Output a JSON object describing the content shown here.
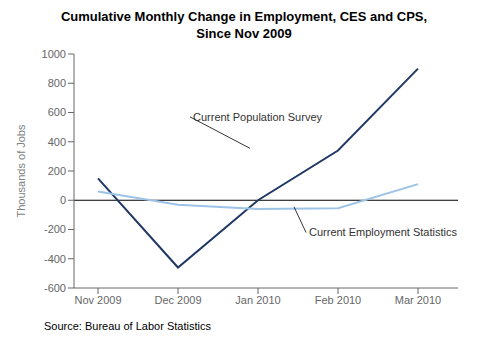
{
  "chart_data": {
    "type": "line",
    "title": "Cumulative Monthly Change in Employment, CES and CPS,\nSince Nov 2009",
    "ylabel": "Thousands of Jobs",
    "source": "Source: Bureau of Labor Statistics",
    "x": [
      0,
      1,
      2,
      3,
      4
    ],
    "series": [
      {
        "color": "#1f3864",
        "values": [
          150,
          -460,
          0,
          340,
          900
        ]
      },
      {
        "color": "#9dc3e6",
        "values": [
          60,
          -30,
          -60,
          -55,
          110
        ]
      }
    ],
    "xlim": [
      -0.3,
      4.5
    ],
    "xticks": [
      {
        "value": 0,
        "label": "Nov 2009"
      },
      {
        "value": 1,
        "label": "Dec 2009"
      },
      {
        "value": 2,
        "label": "Jan 2010"
      },
      {
        "value": 3,
        "label": "Feb 2010"
      },
      {
        "value": 4,
        "label": "Mar 2010"
      }
    ],
    "ylim": [
      -600,
      1000
    ],
    "yticks": [
      -600,
      -400,
      -200,
      0,
      200,
      400,
      600,
      800,
      1000
    ],
    "grid": false,
    "annotations": [
      {
        "text": "Current Population Survey",
        "x": 1.9,
        "y": 355,
        "text_x": 1.15,
        "text_y": 570
      },
      {
        "text": "Current Employment Statistics",
        "x": 2.45,
        "y": -45,
        "text_x": 2.6,
        "text_y": -220
      }
    ]
  }
}
